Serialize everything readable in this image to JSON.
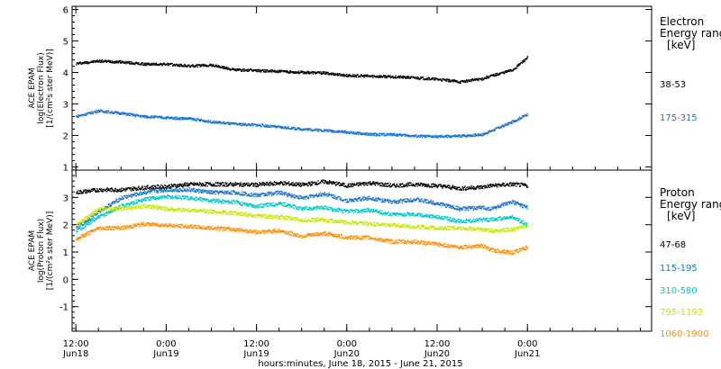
{
  "chart_data": [
    {
      "type": "scatter",
      "panel": "electron",
      "ylabel": [
        "ACE EPAM",
        "log(Electron Flux)",
        "[1/(cm²s ster MeV)]"
      ],
      "ylim": [
        0.9,
        6.1
      ],
      "yticks": [
        1,
        2,
        3,
        4,
        5,
        6
      ],
      "legend": {
        "title": [
          "Electron",
          "Energy range",
          "[keV]"
        ],
        "placement": "right"
      },
      "x": [
        0,
        6,
        12,
        18,
        24,
        30,
        36,
        42,
        48,
        54,
        60,
        66,
        72,
        78,
        84,
        90,
        96,
        102,
        108,
        110,
        116,
        120
      ],
      "series": [
        {
          "name": "38-53",
          "color": "#000000",
          "values": [
            4.3,
            4.38,
            4.35,
            4.28,
            4.28,
            4.22,
            4.25,
            4.1,
            4.08,
            4.05,
            4.02,
            4.0,
            3.92,
            3.9,
            3.88,
            3.85,
            3.8,
            3.72,
            3.82,
            3.9,
            4.1,
            4.5
          ]
        },
        {
          "name": "175-315",
          "color": "#1874cd",
          "values": [
            2.62,
            2.8,
            2.72,
            2.62,
            2.58,
            2.55,
            2.45,
            2.38,
            2.35,
            2.28,
            2.22,
            2.18,
            2.12,
            2.05,
            2.05,
            2.0,
            1.98,
            2.0,
            2.05,
            2.15,
            2.45,
            2.7
          ]
        }
      ]
    },
    {
      "type": "scatter",
      "panel": "proton",
      "ylabel": [
        "ACE EPAM",
        "log(Proton Flux)",
        "[1/(cm²s ster MeV)]"
      ],
      "ylim": [
        -1.9,
        4.0
      ],
      "yticks": [
        -1,
        0,
        1,
        2,
        3
      ],
      "legend": {
        "title": [
          "Proton",
          "Energy range",
          "[keV]"
        ],
        "placement": "right"
      },
      "x": [
        0,
        6,
        12,
        18,
        24,
        30,
        36,
        42,
        48,
        54,
        60,
        66,
        72,
        78,
        84,
        90,
        96,
        102,
        108,
        110,
        116,
        120
      ],
      "series": [
        {
          "name": "47-68",
          "color": "#000000",
          "values": [
            3.2,
            3.3,
            3.3,
            3.38,
            3.42,
            3.5,
            3.5,
            3.5,
            3.48,
            3.55,
            3.48,
            3.6,
            3.45,
            3.55,
            3.45,
            3.5,
            3.45,
            3.35,
            3.4,
            3.45,
            3.5,
            3.45
          ]
        },
        {
          "name": "115-195",
          "color": "#1874cd",
          "values": [
            1.9,
            2.5,
            3.0,
            3.2,
            3.3,
            3.3,
            3.2,
            3.2,
            3.1,
            3.2,
            3.0,
            3.15,
            2.9,
            3.0,
            2.85,
            2.95,
            2.8,
            2.6,
            2.65,
            2.6,
            2.85,
            2.65
          ]
        },
        {
          "name": "310-580",
          "color": "#00c8c8",
          "values": [
            1.8,
            2.3,
            2.7,
            2.95,
            3.05,
            3.0,
            2.9,
            2.85,
            2.7,
            2.8,
            2.6,
            2.65,
            2.5,
            2.55,
            2.4,
            2.4,
            2.3,
            2.15,
            2.2,
            2.2,
            2.3,
            2.0
          ]
        },
        {
          "name": "795-1193",
          "color": "#c8e600",
          "values": [
            2.0,
            2.6,
            2.6,
            2.7,
            2.6,
            2.55,
            2.5,
            2.45,
            2.35,
            2.3,
            2.2,
            2.2,
            2.1,
            2.05,
            2.0,
            1.95,
            1.9,
            1.9,
            1.85,
            1.8,
            1.85,
            2.0
          ]
        },
        {
          "name": "1060-1900",
          "color": "#ff8c00",
          "values": [
            1.5,
            1.9,
            1.9,
            2.05,
            2.0,
            1.95,
            1.9,
            1.85,
            1.75,
            1.8,
            1.6,
            1.7,
            1.55,
            1.55,
            1.4,
            1.4,
            1.3,
            1.2,
            1.25,
            1.1,
            1.0,
            1.2
          ]
        }
      ]
    }
  ],
  "xaxis": {
    "xlim": [
      -1,
      153
    ],
    "ticks": [
      {
        "t": 0,
        "top": "12:00",
        "bottom": "Jun18"
      },
      {
        "t": 24,
        "top": "0:00",
        "bottom": "Jun19"
      },
      {
        "t": 48,
        "top": "12:00",
        "bottom": "Jun19"
      },
      {
        "t": 72,
        "top": "0:00",
        "bottom": "Jun20"
      },
      {
        "t": 96,
        "top": "12:00",
        "bottom": "Jun20"
      },
      {
        "t": 120,
        "top": "0:00",
        "bottom": "Jun21"
      }
    ],
    "minor_step": 6,
    "label": "hours:minutes, June 18, 2015 - June 21, 2015"
  }
}
